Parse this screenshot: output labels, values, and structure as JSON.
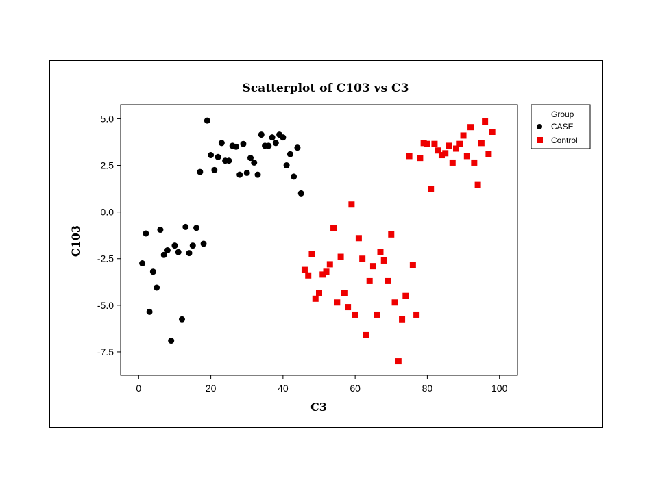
{
  "chart_data": {
    "type": "scatter",
    "title": "Scatterplot of C103 vs C3",
    "xlabel": "C3",
    "ylabel": "C103",
    "xlim": [
      -5,
      105
    ],
    "ylim": [
      -8.75,
      5.75
    ],
    "x_ticks": [
      0,
      20,
      40,
      60,
      80,
      100
    ],
    "x_tick_labels": [
      "0",
      "20",
      "40",
      "60",
      "80",
      "100"
    ],
    "y_ticks": [
      5.0,
      2.5,
      0.0,
      -2.5,
      -5.0,
      -7.5
    ],
    "y_tick_labels": [
      "5.0",
      "2.5",
      "0.0",
      "-2.5",
      "-5.0",
      "-7.5"
    ],
    "grid": false,
    "legend": {
      "title": "Group",
      "placement": "right",
      "entries": [
        "CASE",
        "Control"
      ]
    },
    "series": [
      {
        "name": "CASE",
        "marker": "circle",
        "color": "#000000",
        "points": [
          [
            1,
            -2.75
          ],
          [
            2,
            -1.15
          ],
          [
            3,
            -5.35
          ],
          [
            4,
            -3.2
          ],
          [
            5,
            -4.05
          ],
          [
            6,
            -0.95
          ],
          [
            7,
            -2.3
          ],
          [
            8,
            -2.05
          ],
          [
            9,
            -6.9
          ],
          [
            10,
            -1.8
          ],
          [
            11,
            -2.15
          ],
          [
            12,
            -5.75
          ],
          [
            13,
            -0.8
          ],
          [
            14,
            -2.2
          ],
          [
            15,
            -1.8
          ],
          [
            16,
            -0.85
          ],
          [
            18,
            -1.7
          ],
          [
            17,
            2.15
          ],
          [
            19,
            4.9
          ],
          [
            20,
            3.05
          ],
          [
            21,
            2.25
          ],
          [
            22,
            2.95
          ],
          [
            23,
            3.7
          ],
          [
            24,
            2.75
          ],
          [
            25,
            2.75
          ],
          [
            26,
            3.55
          ],
          [
            27,
            3.5
          ],
          [
            28,
            2.0
          ],
          [
            29,
            3.65
          ],
          [
            30,
            2.1
          ],
          [
            31,
            2.9
          ],
          [
            32,
            2.65
          ],
          [
            33,
            2.0
          ],
          [
            34,
            4.15
          ],
          [
            35,
            3.55
          ],
          [
            36,
            3.55
          ],
          [
            37,
            4.0
          ],
          [
            38,
            3.7
          ],
          [
            39,
            4.15
          ],
          [
            40,
            4.0
          ],
          [
            41,
            2.5
          ],
          [
            42,
            3.1
          ],
          [
            43,
            1.9
          ],
          [
            44,
            3.45
          ],
          [
            45,
            1.0
          ]
        ]
      },
      {
        "name": "Control",
        "marker": "square",
        "color": "#ee0000",
        "points": [
          [
            46,
            -3.1
          ],
          [
            47,
            -3.4
          ],
          [
            48,
            -2.25
          ],
          [
            49,
            -4.65
          ],
          [
            50,
            -4.35
          ],
          [
            51,
            -3.35
          ],
          [
            52,
            -3.2
          ],
          [
            53,
            -2.8
          ],
          [
            54,
            -0.85
          ],
          [
            55,
            -4.85
          ],
          [
            56,
            -2.4
          ],
          [
            57,
            -4.35
          ],
          [
            58,
            -5.1
          ],
          [
            59,
            0.4
          ],
          [
            60,
            -5.5
          ],
          [
            61,
            -1.4
          ],
          [
            62,
            -2.5
          ],
          [
            63,
            -6.6
          ],
          [
            64,
            -3.7
          ],
          [
            65,
            -2.9
          ],
          [
            66,
            -5.5
          ],
          [
            67,
            -2.15
          ],
          [
            68,
            -2.6
          ],
          [
            69,
            -3.7
          ],
          [
            70,
            -1.2
          ],
          [
            71,
            -4.85
          ],
          [
            72,
            -8.0
          ],
          [
            73,
            -5.75
          ],
          [
            74,
            -4.5
          ],
          [
            75,
            3.0
          ],
          [
            76,
            -2.85
          ],
          [
            77,
            -5.5
          ],
          [
            78,
            2.9
          ],
          [
            79,
            3.7
          ],
          [
            80,
            3.65
          ],
          [
            81,
            1.25
          ],
          [
            82,
            3.65
          ],
          [
            83,
            3.3
          ],
          [
            84,
            3.05
          ],
          [
            85,
            3.15
          ],
          [
            86,
            3.55
          ],
          [
            87,
            2.65
          ],
          [
            88,
            3.4
          ],
          [
            89,
            3.65
          ],
          [
            90,
            4.1
          ],
          [
            91,
            3.0
          ],
          [
            92,
            4.55
          ],
          [
            93,
            2.65
          ],
          [
            94,
            1.45
          ],
          [
            95,
            3.7
          ],
          [
            96,
            4.85
          ],
          [
            97,
            3.1
          ],
          [
            98,
            4.3
          ]
        ]
      }
    ]
  }
}
